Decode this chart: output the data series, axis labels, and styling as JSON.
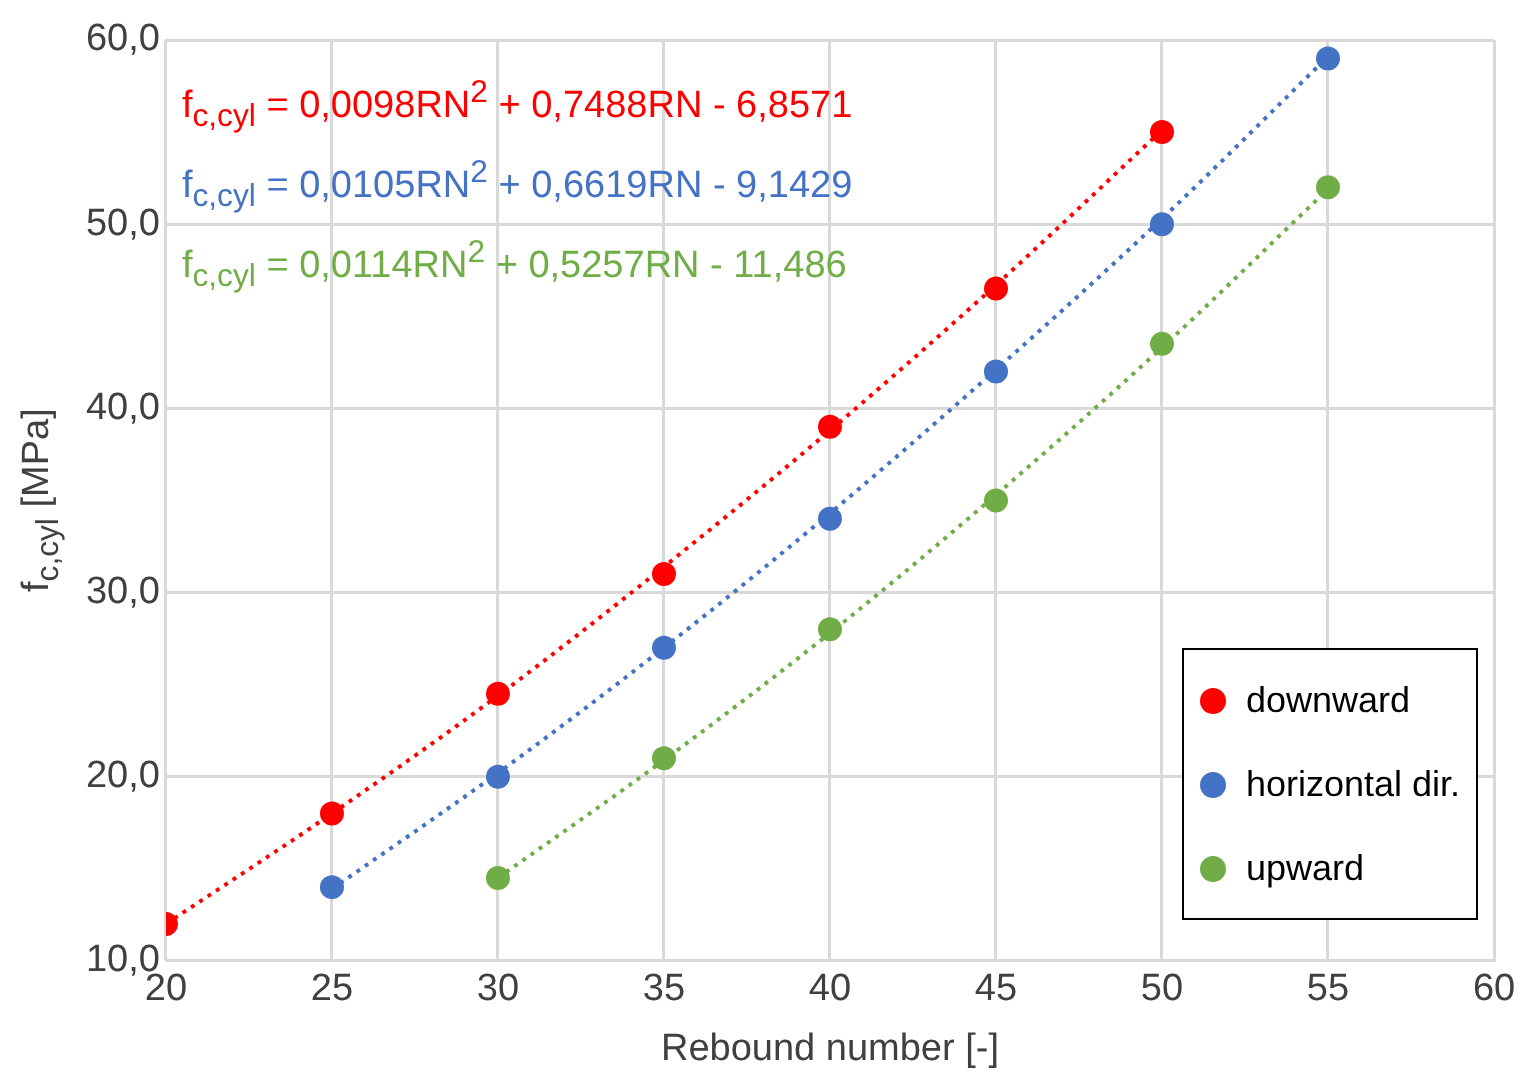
{
  "chart_data": {
    "type": "scatter",
    "xlabel": "Rebound number [-]",
    "ylabel": "f$_{c,cyl}$ [MPa]",
    "xlim": [
      20,
      60
    ],
    "xticks": [
      20,
      25,
      30,
      35,
      40,
      45,
      50,
      55,
      60
    ],
    "ylim": [
      10,
      60
    ],
    "yticks": [
      {
        "value": 10,
        "label": "10,0"
      },
      {
        "value": 20,
        "label": "20,0"
      },
      {
        "value": 30,
        "label": "30,0"
      },
      {
        "value": 40,
        "label": "40,0"
      },
      {
        "value": 50,
        "label": "50,0"
      },
      {
        "value": 60,
        "label": "60,0"
      }
    ],
    "grid": true,
    "legend": "bottom right",
    "series": [
      {
        "name": "downward",
        "marker": "circle",
        "color": "#ff0000",
        "x": [
          20,
          25,
          30,
          35,
          40,
          45,
          50
        ],
        "values": [
          12,
          18,
          24.5,
          31,
          39,
          46.5,
          55
        ]
      },
      {
        "name": "horizontal dir.",
        "marker": "circle",
        "color": "#4472c4",
        "x": [
          25,
          30,
          35,
          40,
          45,
          50,
          55
        ],
        "values": [
          14,
          20,
          27,
          34,
          42,
          50,
          59
        ]
      },
      {
        "name": "upward",
        "marker": "circle",
        "color": "#70ad47",
        "x": [
          30,
          35,
          40,
          45,
          50,
          55
        ],
        "values": [
          14.5,
          21,
          28,
          35,
          43.5,
          52
        ]
      },
      {
        "type": "line",
        "marker": "none",
        "line_style": "dotted",
        "color": "#ff0000",
        "x": [
          20,
          25,
          30,
          35,
          40,
          45,
          50
        ],
        "values": [
          12,
          18,
          24.4,
          31.4,
          38.8,
          46.7,
          55.1
        ]
      },
      {
        "type": "line",
        "marker": "none",
        "line_style": "dotted",
        "color": "#4472c4",
        "x": [
          25,
          30,
          35,
          40,
          45,
          50,
          55
        ],
        "values": [
          13.9,
          20.2,
          27,
          34.3,
          42.1,
          50.3,
          59.1
        ]
      },
      {
        "type": "line",
        "marker": "none",
        "line_style": "dotted",
        "color": "#70ad47",
        "x": [
          30,
          35,
          40,
          45,
          50,
          55
        ],
        "values": [
          14.5,
          20.9,
          27.8,
          35.3,
          43.3,
          51.9
        ]
      }
    ],
    "annotations": [
      "f$_{c,cyl}$ = 0,0098RN$^{2}$ + 0,7488RN - 6,8571",
      "f$_{c,cyl}$ = 0,0105RN$^{2}$ + 0,6619RN - 9,1429",
      "f$_{c,cyl}$ = 0,0114RN$^{2}$ + 0,5257RN - 11,486"
    ]
  }
}
